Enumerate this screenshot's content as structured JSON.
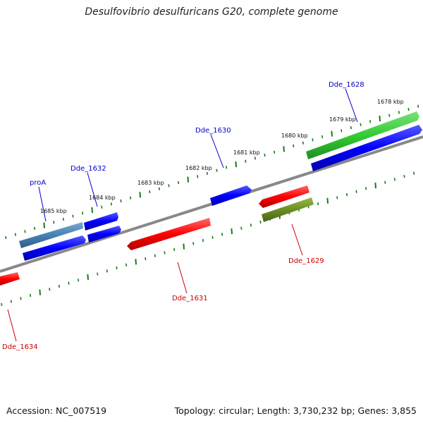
{
  "title": "Desulfovibrio desulfuricans G20, complete genome",
  "accession": "Accession: NC_007519",
  "summary": "Topology: circular; Length: 3,730,232 bp; Genes: 3,855",
  "tick_labels": [
    "1678 kbp",
    "1679 kbp",
    "1680 kbp",
    "1681 kbp",
    "1682 kbp",
    "1683 kbp",
    "1684 kbp",
    "1685 kbp"
  ],
  "gene_labels": {
    "proA": "proA",
    "dde1632": "Dde_1632",
    "dde1630": "Dde_1630",
    "dde1628": "Dde_1628",
    "dde1631": "Dde_1631",
    "dde1629": "Dde_1629",
    "dde1634": "Dde_1634"
  },
  "colors": {
    "forward_label": "#0000cc",
    "reverse_label": "#cc0000",
    "tick": "#1a7a1a",
    "backbone": "#888888",
    "blue": "#0000ff",
    "steelblue": "#4682b4",
    "red": "#ff0000",
    "green": "#33cc33",
    "olive": "#6b8e23"
  }
}
